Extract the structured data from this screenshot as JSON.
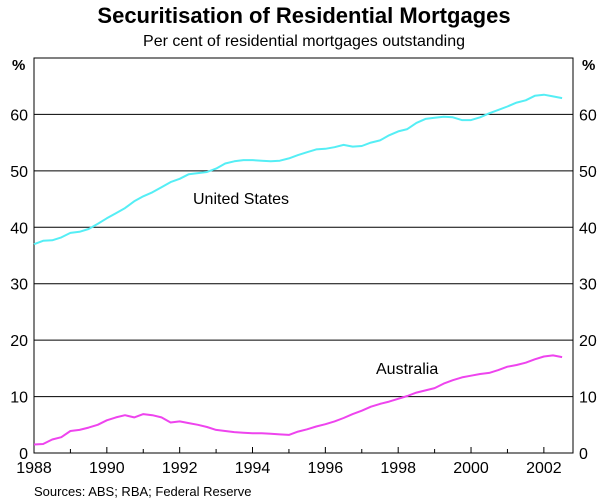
{
  "chart_data": {
    "type": "line",
    "title": "Securitisation of Residential Mortgages",
    "subtitle": "Per cent of residential mortgages outstanding",
    "y_unit_left": "%",
    "y_unit_right": "%",
    "ylim": [
      0,
      70
    ],
    "y_ticks": [
      0,
      10,
      20,
      30,
      40,
      50,
      60
    ],
    "xlim": [
      1988,
      2002.8
    ],
    "x_ticks": [
      1988,
      1990,
      1992,
      1994,
      1996,
      1998,
      2000,
      2002
    ],
    "grid": "horizontal",
    "source": "Sources: ABS; RBA; Federal Reserve",
    "series": [
      {
        "name": "United States",
        "color": "#55eef5",
        "x": [
          1988.0,
          1988.25,
          1988.5,
          1988.75,
          1989.0,
          1989.25,
          1989.5,
          1989.75,
          1990.0,
          1990.25,
          1990.5,
          1990.75,
          1991.0,
          1991.25,
          1991.5,
          1991.75,
          1992.0,
          1992.25,
          1992.5,
          1992.75,
          1993.0,
          1993.25,
          1993.5,
          1993.75,
          1994.0,
          1994.25,
          1994.5,
          1994.75,
          1995.0,
          1995.25,
          1995.5,
          1995.75,
          1996.0,
          1996.25,
          1996.5,
          1996.75,
          1997.0,
          1997.25,
          1997.5,
          1997.75,
          1998.0,
          1998.25,
          1998.5,
          1998.75,
          1999.0,
          1999.25,
          1999.5,
          1999.75,
          2000.0,
          2000.25,
          2000.5,
          2000.75,
          2001.0,
          2001.25,
          2001.5,
          2001.75,
          2002.0,
          2002.25,
          2002.5
        ],
        "values": [
          37.0,
          37.6,
          37.7,
          38.2,
          39.0,
          39.2,
          39.7,
          40.6,
          41.6,
          42.5,
          43.4,
          44.6,
          45.5,
          46.2,
          47.1,
          48.0,
          48.6,
          49.4,
          49.6,
          49.8,
          50.4,
          51.3,
          51.7,
          51.9,
          51.9,
          51.8,
          51.7,
          51.8,
          52.2,
          52.8,
          53.3,
          53.8,
          53.9,
          54.2,
          54.6,
          54.3,
          54.4,
          55.0,
          55.4,
          56.3,
          57.0,
          57.4,
          58.5,
          59.2,
          59.4,
          59.6,
          59.5,
          59.0,
          59.0,
          59.5,
          60.2,
          60.8,
          61.4,
          62.1,
          62.5,
          63.3,
          63.5,
          63.2,
          62.9
        ]
      },
      {
        "name": "Australia",
        "color": "#ee44ee",
        "x": [
          1988.0,
          1988.25,
          1988.5,
          1988.75,
          1989.0,
          1989.25,
          1989.5,
          1989.75,
          1990.0,
          1990.25,
          1990.5,
          1990.75,
          1991.0,
          1991.25,
          1991.5,
          1991.75,
          1992.0,
          1992.25,
          1992.5,
          1992.75,
          1993.0,
          1993.25,
          1993.5,
          1993.75,
          1994.0,
          1994.25,
          1994.5,
          1994.75,
          1995.0,
          1995.25,
          1995.5,
          1995.75,
          1996.0,
          1996.25,
          1996.5,
          1996.75,
          1997.0,
          1997.25,
          1997.5,
          1997.75,
          1998.0,
          1998.25,
          1998.5,
          1998.75,
          1999.0,
          1999.25,
          1999.5,
          1999.75,
          2000.0,
          2000.25,
          2000.5,
          2000.75,
          2001.0,
          2001.25,
          2001.5,
          2001.75,
          2002.0,
          2002.25,
          2002.5
        ],
        "values": [
          1.5,
          1.6,
          2.4,
          2.8,
          3.9,
          4.1,
          4.5,
          5.0,
          5.8,
          6.3,
          6.7,
          6.3,
          6.9,
          6.7,
          6.3,
          5.4,
          5.6,
          5.3,
          5.0,
          4.6,
          4.1,
          3.9,
          3.7,
          3.6,
          3.5,
          3.5,
          3.4,
          3.3,
          3.2,
          3.8,
          4.2,
          4.7,
          5.1,
          5.6,
          6.2,
          6.9,
          7.5,
          8.2,
          8.7,
          9.1,
          9.6,
          10.1,
          10.7,
          11.1,
          11.5,
          12.3,
          12.9,
          13.4,
          13.7,
          14.0,
          14.2,
          14.7,
          15.3,
          15.6,
          16.0,
          16.6,
          17.1,
          17.3,
          17.0
        ]
      }
    ],
    "annotations": [
      {
        "text": "United States",
        "series": 0
      },
      {
        "text": "Australia",
        "series": 1
      }
    ]
  }
}
